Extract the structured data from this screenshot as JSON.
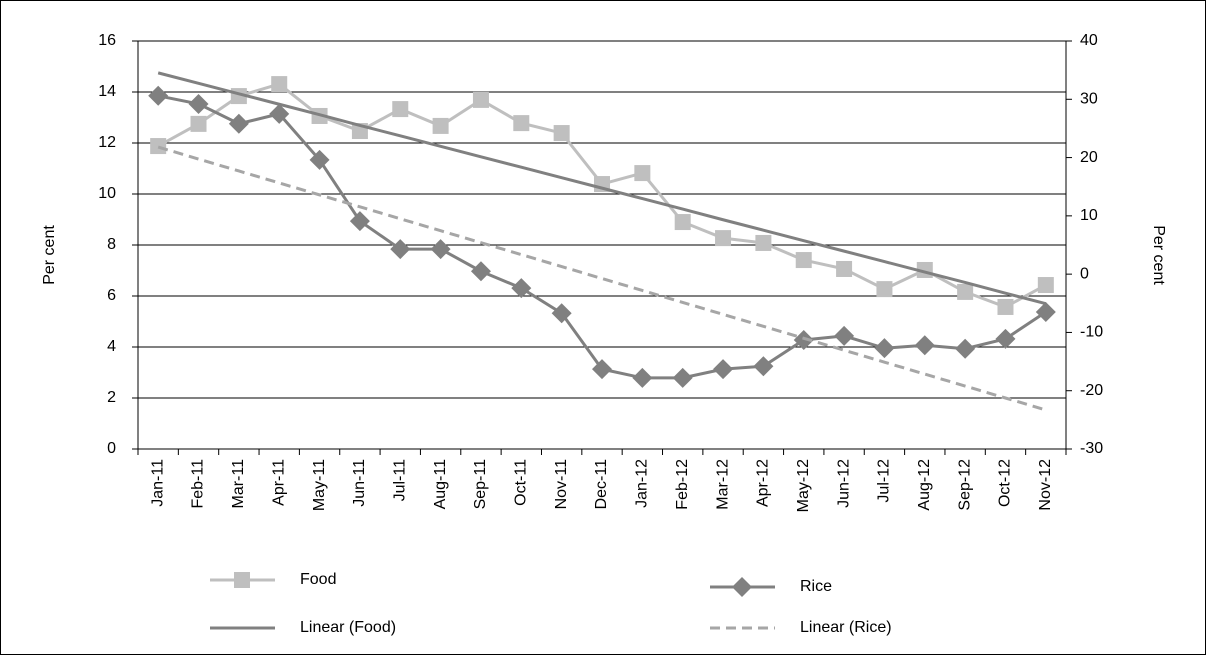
{
  "chart_data": {
    "type": "line",
    "categories": [
      "Jan-11",
      "Feb-11",
      "Mar-11",
      "Apr-11",
      "May-11",
      "Jun-11",
      "Jul-11",
      "Aug-11",
      "Sep-11",
      "Oct-11",
      "Nov-11",
      "Dec-11",
      "Jan-12",
      "Feb-12",
      "Mar-12",
      "Apr-12",
      "May-12",
      "Jun-12",
      "Jul-12",
      "Aug-12",
      "Sep-12",
      "Oct-12",
      "Nov-12"
    ],
    "ylabel": "Per cent",
    "y2label": "Per cent",
    "ylim": [
      0,
      16
    ],
    "yticks": [
      0,
      2,
      4,
      6,
      8,
      10,
      12,
      14,
      16
    ],
    "y2lim": [
      -30,
      40
    ],
    "y2ticks": [
      -30,
      -20,
      -10,
      0,
      10,
      20,
      30,
      40
    ],
    "grid": true,
    "series": [
      {
        "name": "Food",
        "color": "#bfbfbf",
        "marker": "square",
        "values": [
          11.88,
          12.75,
          13.84,
          14.31,
          13.06,
          12.47,
          13.33,
          12.67,
          13.69,
          12.78,
          12.39,
          10.39,
          10.82,
          8.9,
          8.27,
          8.08,
          7.41,
          7.06,
          6.27,
          7.02,
          6.16,
          5.57,
          6.43
        ]
      },
      {
        "name": "Rice",
        "color": "#808080",
        "marker": "diamond",
        "axis": "y2",
        "values": [
          30.6,
          29.2,
          25.8,
          27.5,
          19.6,
          9.1,
          4.3,
          4.3,
          0.5,
          -2.4,
          -6.7,
          -16.3,
          -17.8,
          -17.8,
          -16.3,
          -15.8,
          -11.3,
          -10.6,
          -12.7,
          -12.2,
          -12.8,
          -11.1,
          -6.5
        ]
      },
      {
        "name": "Linear (Food)",
        "color": "#808080",
        "values": [
          14.75,
          14.34,
          13.93,
          13.52,
          13.11,
          12.69,
          12.28,
          11.87,
          11.46,
          11.05,
          10.64,
          10.23,
          9.82,
          9.41,
          8.99,
          8.58,
          8.17,
          7.76,
          7.35,
          6.94,
          6.53,
          6.11,
          5.7
        ]
      },
      {
        "name": "Linear (Rice)",
        "color": "#a6a6a6",
        "dashed": true,
        "axis": "y2",
        "values": [
          21.8,
          19.75,
          17.7,
          15.65,
          13.6,
          11.55,
          9.5,
          7.45,
          5.4,
          3.35,
          1.3,
          -0.75,
          -2.8,
          -4.85,
          -6.9,
          -8.95,
          -11.0,
          -13.05,
          -15.1,
          -17.15,
          -19.2,
          -21.25,
          -23.3
        ]
      }
    ]
  }
}
